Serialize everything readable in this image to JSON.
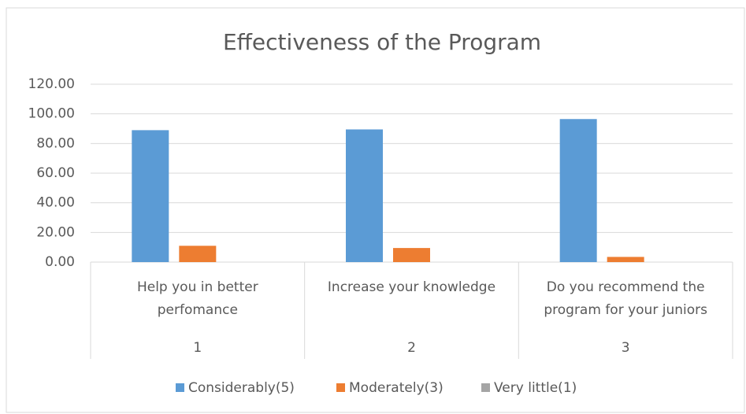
{
  "chart_data": {
    "type": "bar",
    "title": "Effectiveness of the Program",
    "categories": [
      "Help you in better perfomance",
      "Increase your knowledge",
      "Do you recommend the program for your juniors"
    ],
    "category_numbers": [
      "1",
      "2",
      "3"
    ],
    "series": [
      {
        "name": "Considerably(5)",
        "color": "#5b9bd5",
        "values": [
          89,
          89.5,
          96.5
        ]
      },
      {
        "name": "Moderately(3)",
        "color": "#ed7d31",
        "values": [
          11,
          9.5,
          3.5
        ]
      },
      {
        "name": "Very little(1)",
        "color": "#a5a5a5",
        "values": [
          0,
          0,
          0
        ]
      }
    ],
    "ylim": [
      0,
      120
    ],
    "yticks": [
      {
        "value": 0,
        "label": "0.00"
      },
      {
        "value": 20,
        "label": "20.00"
      },
      {
        "value": 40,
        "label": "40.00"
      },
      {
        "value": 60,
        "label": "60.00"
      },
      {
        "value": 80,
        "label": "80.00"
      },
      {
        "value": 100,
        "label": "100.00"
      },
      {
        "value": 120,
        "label": "120.00"
      }
    ],
    "grid": true,
    "legend": "bottom"
  }
}
